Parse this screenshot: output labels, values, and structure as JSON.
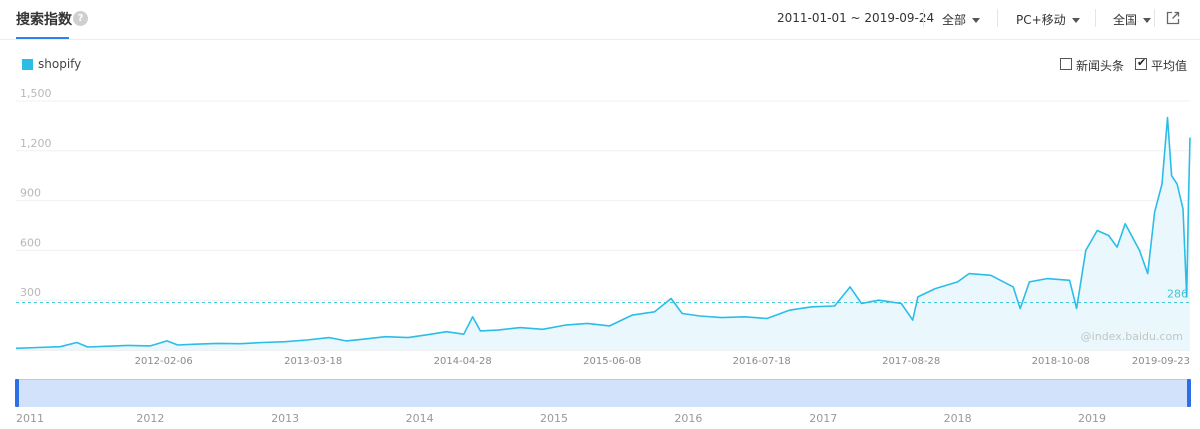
{
  "header": {
    "title": "搜索指数",
    "help_icon": "question-circle-icon",
    "date_range": "2011-01-01 ~ 2019-09-24",
    "scope": "全部",
    "device": "PC+移动",
    "region": "全国",
    "external_icon": "external-link-icon"
  },
  "legend": {
    "series_name": "shopify",
    "series_color": "#2bbde8"
  },
  "options": {
    "news_label": "新闻头条",
    "news_checked": false,
    "average_label": "平均值",
    "average_checked": true
  },
  "watermark": "@index.baidu.com",
  "chart_data": {
    "type": "area",
    "title": "",
    "xlabel": "",
    "ylabel": "",
    "ylim": [
      0,
      1500
    ],
    "yticks": [
      "1,500",
      "1,200",
      "900",
      "600",
      "300"
    ],
    "xlim": [
      "2011-01-01",
      "2019-09-24"
    ],
    "xticks": [
      "2012-02-06",
      "2013-03-18",
      "2014-04-28",
      "2015-06-08",
      "2016-07-18",
      "2017-08-28",
      "2018-10-08",
      "2019-09-23"
    ],
    "average": 286,
    "average_label": "286",
    "grid": true,
    "legend_position": "top-left",
    "series": [
      {
        "name": "shopify",
        "color": "#2bbde8",
        "points": [
          [
            "2011-01-01",
            10
          ],
          [
            "2011-03-01",
            15
          ],
          [
            "2011-05-01",
            20
          ],
          [
            "2011-06-15",
            45
          ],
          [
            "2011-07-15",
            18
          ],
          [
            "2011-09-01",
            22
          ],
          [
            "2011-11-01",
            28
          ],
          [
            "2012-01-01",
            25
          ],
          [
            "2012-02-15",
            55
          ],
          [
            "2012-03-15",
            30
          ],
          [
            "2012-05-01",
            35
          ],
          [
            "2012-07-01",
            40
          ],
          [
            "2012-09-01",
            38
          ],
          [
            "2012-11-01",
            45
          ],
          [
            "2013-01-01",
            50
          ],
          [
            "2013-03-01",
            60
          ],
          [
            "2013-05-01",
            75
          ],
          [
            "2013-06-15",
            55
          ],
          [
            "2013-08-01",
            65
          ],
          [
            "2013-10-01",
            80
          ],
          [
            "2013-12-01",
            75
          ],
          [
            "2014-02-01",
            95
          ],
          [
            "2014-03-15",
            110
          ],
          [
            "2014-05-01",
            95
          ],
          [
            "2014-05-25",
            200
          ],
          [
            "2014-06-15",
            115
          ],
          [
            "2014-08-01",
            120
          ],
          [
            "2014-10-01",
            135
          ],
          [
            "2014-12-01",
            125
          ],
          [
            "2015-02-01",
            150
          ],
          [
            "2015-04-01",
            160
          ],
          [
            "2015-06-01",
            145
          ],
          [
            "2015-08-01",
            210
          ],
          [
            "2015-10-01",
            230
          ],
          [
            "2015-11-15",
            310
          ],
          [
            "2015-12-15",
            220
          ],
          [
            "2016-02-01",
            205
          ],
          [
            "2016-04-01",
            195
          ],
          [
            "2016-06-01",
            200
          ],
          [
            "2016-08-01",
            190
          ],
          [
            "2016-10-01",
            240
          ],
          [
            "2016-12-01",
            260
          ],
          [
            "2017-02-01",
            265
          ],
          [
            "2017-03-15",
            380
          ],
          [
            "2017-04-15",
            280
          ],
          [
            "2017-06-01",
            300
          ],
          [
            "2017-08-01",
            280
          ],
          [
            "2017-09-01",
            180
          ],
          [
            "2017-09-15",
            320
          ],
          [
            "2017-11-01",
            370
          ],
          [
            "2018-01-01",
            410
          ],
          [
            "2018-02-01",
            460
          ],
          [
            "2018-04-01",
            450
          ],
          [
            "2018-06-01",
            380
          ],
          [
            "2018-06-20",
            250
          ],
          [
            "2018-07-15",
            410
          ],
          [
            "2018-09-01",
            430
          ],
          [
            "2018-11-01",
            420
          ],
          [
            "2018-11-20",
            250
          ],
          [
            "2018-12-15",
            600
          ],
          [
            "2019-01-15",
            720
          ],
          [
            "2019-02-15",
            690
          ],
          [
            "2019-03-10",
            620
          ],
          [
            "2019-04-01",
            760
          ],
          [
            "2019-05-10",
            600
          ],
          [
            "2019-06-01",
            460
          ],
          [
            "2019-06-20",
            830
          ],
          [
            "2019-07-10",
            1000
          ],
          [
            "2019-07-25",
            1400
          ],
          [
            "2019-08-05",
            1050
          ],
          [
            "2019-08-20",
            1000
          ],
          [
            "2019-09-05",
            850
          ],
          [
            "2019-09-15",
            320
          ],
          [
            "2019-09-20",
            900
          ],
          [
            "2019-09-24",
            1280
          ]
        ]
      }
    ]
  },
  "range_slider": {
    "years": [
      "2011",
      "2012",
      "2013",
      "2014",
      "2015",
      "2016",
      "2017",
      "2018",
      "2019"
    ],
    "selected_start": "2011-01-01",
    "selected_end": "2019-09-24"
  }
}
